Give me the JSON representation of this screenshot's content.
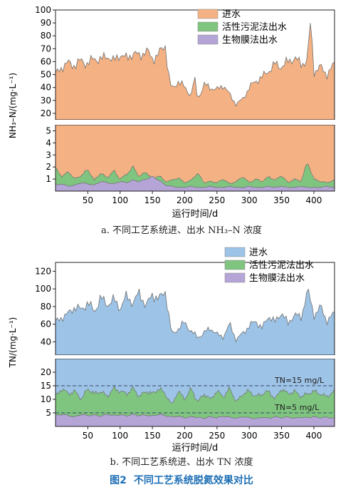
{
  "figure_caption": {
    "number": "图2",
    "text": "不同工艺系统脱氮效果对比"
  },
  "chart_data": [
    {
      "type": "area",
      "panel_caption": "a. 不同工艺系统进、出水 NH₃–N 浓度",
      "xlabel": "运行时间/d",
      "ylabel": "NH₃–N/(mg·L⁻¹)",
      "xlim": [
        0,
        432
      ],
      "xticks": [
        "50",
        "100",
        "150",
        "200",
        "250",
        "300",
        "350",
        "400"
      ],
      "xtick_values": [
        50,
        100,
        150,
        200,
        250,
        300,
        350,
        400
      ],
      "broken_axis": true,
      "upper_ylim": [
        15,
        100
      ],
      "upper_yticks": [
        "20",
        "30",
        "40",
        "50",
        "60",
        "70",
        "80",
        "90",
        "100"
      ],
      "upper_ytick_values": [
        20,
        30,
        40,
        50,
        60,
        70,
        80,
        90,
        100
      ],
      "lower_ylim": [
        0,
        5.5
      ],
      "lower_yticks": [
        "1",
        "2",
        "3",
        "4",
        "5"
      ],
      "lower_ytick_values": [
        1,
        2,
        3,
        4,
        5
      ],
      "legend": {
        "placement": "top-right",
        "entries": [
          "进水",
          "活性污泥法出水",
          "生物膜法出水"
        ]
      },
      "colors": {
        "influent": "#f4b183",
        "activated_sludge": "#7fc47f",
        "biofilm": "#b4a5d6",
        "line": "#707070"
      },
      "series": [
        {
          "name": "进水",
          "x": [
            0,
            10,
            20,
            30,
            40,
            50,
            60,
            70,
            80,
            90,
            100,
            110,
            120,
            130,
            140,
            150,
            160,
            170,
            175,
            180,
            190,
            200,
            210,
            215,
            220,
            230,
            240,
            250,
            260,
            270,
            280,
            290,
            300,
            310,
            320,
            330,
            340,
            350,
            360,
            370,
            380,
            390,
            395,
            400,
            410,
            420,
            432
          ],
          "values": [
            50,
            56,
            59,
            57,
            61,
            58,
            63,
            61,
            65,
            60,
            66,
            62,
            67,
            64,
            69,
            62,
            66,
            73,
            50,
            38,
            45,
            40,
            34,
            48,
            31,
            42,
            40,
            38,
            42,
            34,
            27,
            31,
            40,
            45,
            48,
            53,
            58,
            56,
            60,
            63,
            58,
            61,
            92,
            52,
            56,
            50,
            58
          ]
        },
        {
          "name": "活性污泥法出水",
          "x": [
            0,
            10,
            20,
            30,
            40,
            50,
            60,
            70,
            80,
            90,
            100,
            110,
            120,
            130,
            140,
            150,
            160,
            170,
            180,
            190,
            200,
            210,
            220,
            230,
            240,
            250,
            260,
            270,
            280,
            290,
            300,
            310,
            320,
            330,
            340,
            350,
            360,
            370,
            380,
            390,
            400,
            410,
            420,
            432
          ],
          "values": [
            1.9,
            1.2,
            1.6,
            1.0,
            1.3,
            1.8,
            0.9,
            1.5,
            1.1,
            1.7,
            1.0,
            1.4,
            2.0,
            1.2,
            1.6,
            1.0,
            1.3,
            0.8,
            0.9,
            1.1,
            0.7,
            0.9,
            1.5,
            0.7,
            0.8,
            0.7,
            1.0,
            0.6,
            0.8,
            1.2,
            0.7,
            1.0,
            0.8,
            1.2,
            0.9,
            1.3,
            0.7,
            1.0,
            0.8,
            2.4,
            1.0,
            0.8,
            0.7,
            0.9
          ]
        },
        {
          "name": "生物膜法出水",
          "x": [
            0,
            10,
            20,
            30,
            40,
            50,
            60,
            70,
            80,
            90,
            100,
            110,
            120,
            130,
            140,
            150,
            160,
            170,
            180,
            190,
            200,
            210,
            220,
            230,
            240,
            250,
            260,
            270,
            280,
            290,
            300,
            310,
            320,
            330,
            340,
            350,
            360,
            370,
            380,
            390,
            400,
            410,
            420,
            432
          ],
          "values": [
            0.5,
            0.6,
            0.4,
            0.5,
            0.7,
            0.6,
            0.5,
            0.8,
            0.7,
            0.6,
            0.8,
            0.7,
            0.9,
            0.8,
            1.0,
            1.2,
            0.9,
            0.5,
            0.4,
            0.3,
            0.3,
            0.4,
            0.3,
            0.3,
            0.4,
            0.3,
            0.3,
            0.4,
            0.3,
            0.3,
            0.4,
            0.3,
            0.3,
            0.4,
            0.3,
            0.4,
            0.3,
            0.3,
            0.4,
            0.3,
            0.3,
            0.3,
            0.4,
            0.3
          ]
        }
      ]
    },
    {
      "type": "area",
      "panel_caption": "b. 不同工艺系统进、出水 TN 浓度",
      "xlabel": "运行时间/d",
      "ylabel": "TN/(mg·L⁻¹)",
      "xlim": [
        0,
        432
      ],
      "xticks": [
        "50",
        "100",
        "150",
        "200",
        "250",
        "300",
        "350",
        "400"
      ],
      "xtick_values": [
        50,
        100,
        150,
        200,
        250,
        300,
        350,
        400
      ],
      "broken_axis": true,
      "upper_ylim": [
        25,
        130
      ],
      "upper_yticks": [
        "40",
        "60",
        "80",
        "100",
        "120"
      ],
      "upper_ytick_values": [
        40,
        60,
        80,
        100,
        120
      ],
      "lower_ylim": [
        0,
        25
      ],
      "lower_yticks": [
        "5",
        "10",
        "15",
        "20"
      ],
      "lower_ytick_values": [
        5,
        10,
        15,
        20
      ],
      "annotations": [
        {
          "text": "TN=15 mg/L",
          "y": 15
        },
        {
          "text": "TN=5 mg/L",
          "y": 5
        }
      ],
      "legend": {
        "placement": "top-right",
        "entries": [
          "进水",
          "活性污泥法出水",
          "生物膜法出水"
        ]
      },
      "colors": {
        "influent": "#9dc3e6",
        "activated_sludge": "#7fc47f",
        "biofilm": "#b4a5d6",
        "line": "#707070"
      },
      "series": [
        {
          "name": "进水",
          "x": [
            0,
            10,
            20,
            30,
            40,
            50,
            60,
            70,
            80,
            90,
            100,
            110,
            120,
            130,
            140,
            150,
            160,
            170,
            175,
            180,
            190,
            200,
            210,
            220,
            230,
            240,
            250,
            260,
            270,
            280,
            290,
            300,
            310,
            320,
            330,
            340,
            350,
            360,
            370,
            380,
            390,
            400,
            410,
            420,
            432
          ],
          "values": [
            62,
            68,
            72,
            80,
            76,
            85,
            74,
            90,
            82,
            88,
            78,
            92,
            84,
            96,
            80,
            94,
            88,
            98,
            72,
            48,
            55,
            62,
            52,
            45,
            50,
            56,
            48,
            46,
            60,
            42,
            50,
            58,
            64,
            55,
            70,
            62,
            74,
            60,
            72,
            66,
            100,
            70,
            80,
            64,
            72
          ]
        },
        {
          "name": "活性污泥法出水",
          "x": [
            0,
            10,
            20,
            30,
            40,
            50,
            60,
            70,
            80,
            90,
            100,
            110,
            120,
            130,
            140,
            150,
            160,
            170,
            180,
            190,
            200,
            210,
            220,
            230,
            240,
            250,
            260,
            270,
            280,
            290,
            300,
            310,
            320,
            330,
            340,
            350,
            360,
            370,
            380,
            390,
            400,
            410,
            420,
            432
          ],
          "values": [
            11,
            14,
            12,
            13,
            10,
            14,
            12,
            13,
            11,
            14,
            13,
            12,
            14,
            11,
            13,
            12,
            14,
            12,
            8,
            13,
            10,
            14,
            9,
            12,
            10,
            13,
            11,
            14,
            9,
            12,
            13,
            11,
            12,
            13,
            10,
            14,
            12,
            13,
            11,
            12,
            13,
            12,
            11,
            13
          ]
        },
        {
          "name": "生物膜法出水",
          "x": [
            0,
            10,
            20,
            30,
            40,
            50,
            60,
            70,
            80,
            90,
            100,
            110,
            120,
            130,
            140,
            150,
            160,
            170,
            180,
            190,
            200,
            210,
            220,
            230,
            240,
            250,
            260,
            270,
            280,
            290,
            300,
            310,
            320,
            330,
            340,
            350,
            360,
            370,
            380,
            390,
            400,
            410,
            420,
            432
          ],
          "values": [
            4,
            4.5,
            4,
            3.5,
            4.5,
            4,
            4.2,
            3.8,
            4.5,
            4,
            4.3,
            3.9,
            4.4,
            4,
            4.2,
            3.8,
            4.5,
            4,
            3.5,
            3.8,
            3.2,
            3.6,
            3.4,
            3,
            3.6,
            3.2,
            3.8,
            3.4,
            3,
            3.6,
            3.2,
            2.8,
            3.4,
            3,
            3.6,
            3.2,
            3.5,
            3,
            3.4,
            3.2,
            3.6,
            3.2,
            3.4,
            3
          ]
        }
      ]
    }
  ]
}
